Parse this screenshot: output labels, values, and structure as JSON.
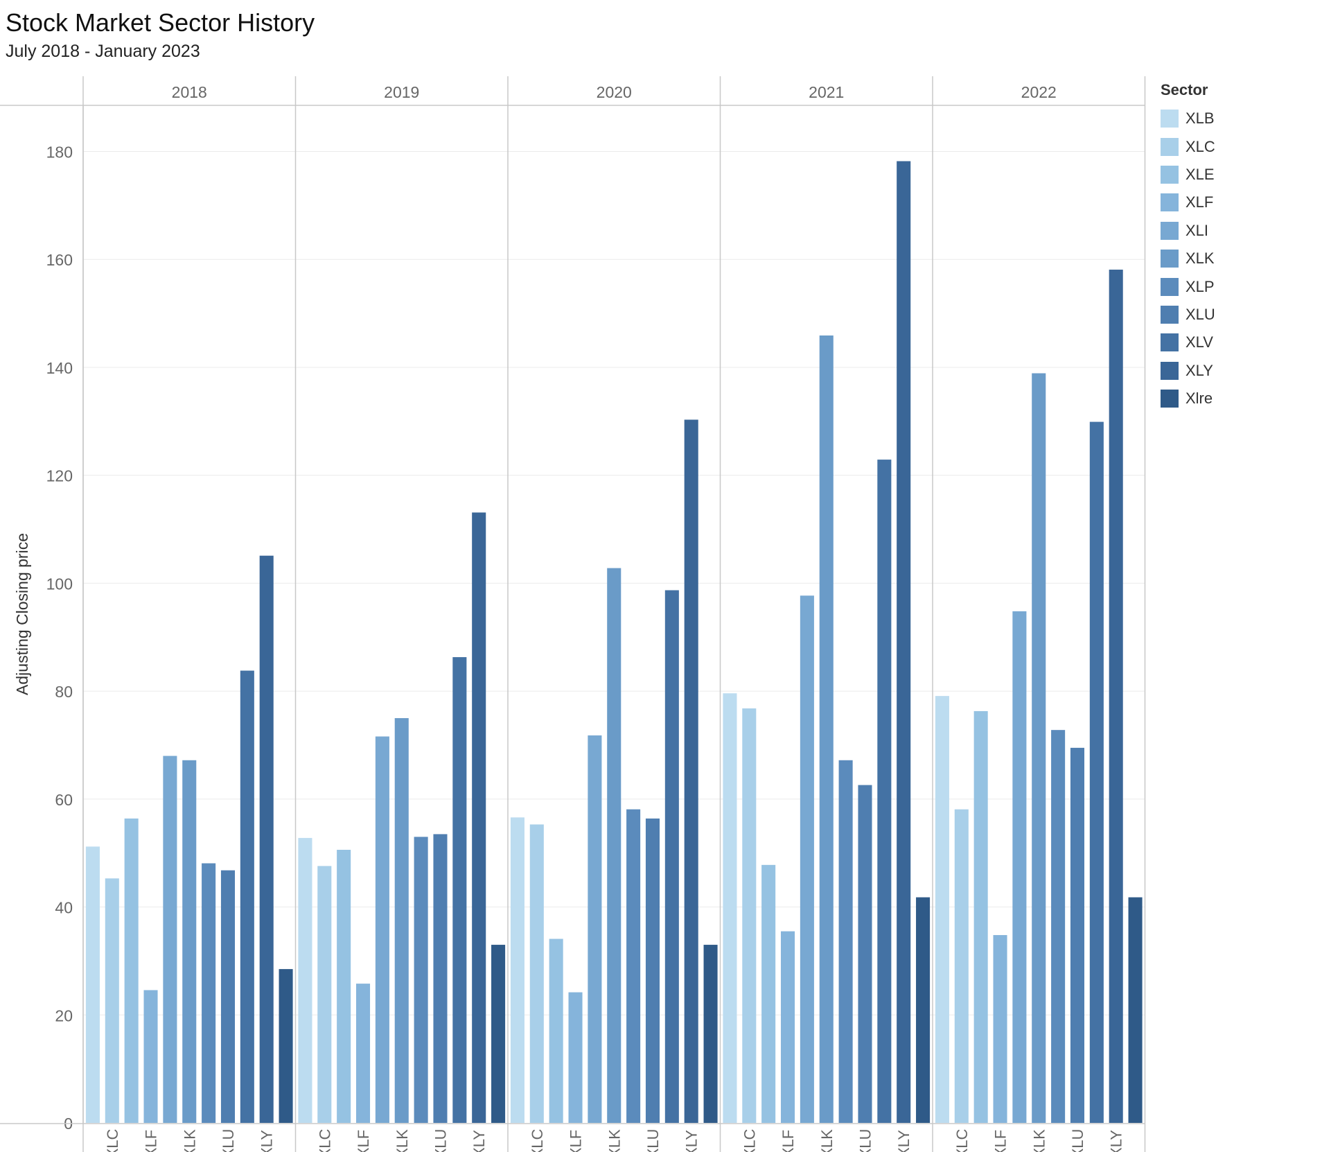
{
  "title": "Stock Market Sector History",
  "subtitle": "July 2018 - January 2023",
  "legend": {
    "title": "Sector",
    "items": [
      {
        "label": "XLB",
        "color": "#bcdcf0"
      },
      {
        "label": "XLC",
        "color": "#a8cfe9"
      },
      {
        "label": "XLE",
        "color": "#95c2e2"
      },
      {
        "label": "XLF",
        "color": "#85b4db"
      },
      {
        "label": "XLI",
        "color": "#78a8d2"
      },
      {
        "label": "XLK",
        "color": "#6a9bc8"
      },
      {
        "label": "XLP",
        "color": "#5b8bbc"
      },
      {
        "label": "XLU",
        "color": "#4f7eb0"
      },
      {
        "label": "XLV",
        "color": "#4472a4"
      },
      {
        "label": "XLY",
        "color": "#3a6697"
      },
      {
        "label": "Xlre",
        "color": "#2f5a88"
      }
    ]
  },
  "chart_data": {
    "type": "bar",
    "ylabel": "Adjusting Closing price",
    "ylim": [
      0,
      187
    ],
    "yticks": [
      0,
      20,
      40,
      60,
      80,
      100,
      120,
      140,
      160,
      180
    ],
    "grid": true,
    "legend_position": "right",
    "panels": [
      "2018",
      "2019",
      "2020",
      "2021",
      "2022"
    ],
    "categories": [
      "XLB",
      "XLC",
      "XLE",
      "XLF",
      "XLI",
      "XLK",
      "XLP",
      "XLU",
      "XLV",
      "XLY",
      "Xlre"
    ],
    "x_tick_labels": [
      "XLC",
      "XLF",
      "XLK",
      "XLU",
      "XLY"
    ],
    "values": {
      "2018": [
        51.2,
        45.3,
        56.4,
        24.6,
        68.0,
        67.2,
        48.1,
        46.8,
        83.8,
        105.1,
        28.5
      ],
      "2019": [
        52.8,
        47.6,
        50.6,
        25.8,
        71.6,
        75.0,
        53.0,
        53.5,
        86.3,
        113.1,
        33.0
      ],
      "2020": [
        56.6,
        55.3,
        34.1,
        24.2,
        71.8,
        102.8,
        58.1,
        56.4,
        98.7,
        130.3,
        33.0
      ],
      "2021": [
        79.6,
        76.8,
        47.8,
        35.5,
        97.7,
        145.9,
        67.2,
        62.6,
        122.9,
        178.2,
        41.8
      ],
      "2022": [
        79.1,
        58.1,
        76.3,
        34.8,
        94.8,
        138.9,
        72.8,
        69.5,
        129.9,
        158.1,
        41.8
      ]
    }
  }
}
